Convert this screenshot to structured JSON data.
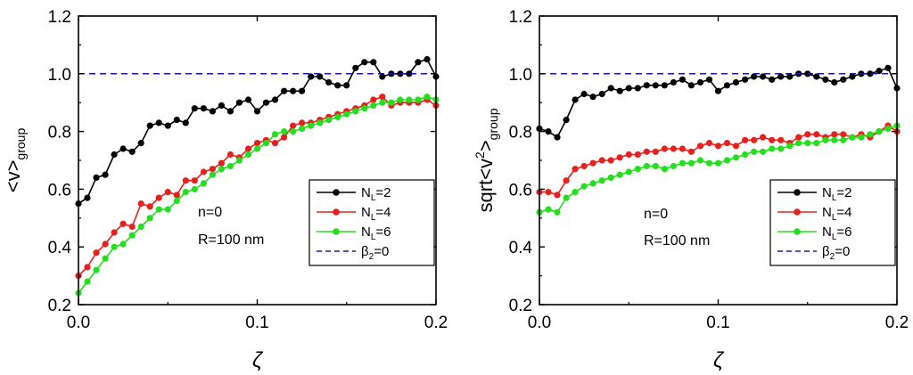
{
  "chart_data": [
    {
      "type": "line",
      "title": "",
      "xlabel": "ζ",
      "ylabel": "<v>",
      "ylabel_sub": "group",
      "xlim": [
        0.0,
        0.2
      ],
      "ylim": [
        0.2,
        1.2
      ],
      "xticks": [
        0.0,
        0.1,
        0.2
      ],
      "xtick_labels": [
        "0.0",
        "0.1",
        "0.2"
      ],
      "yticks": [
        0.2,
        0.4,
        0.6,
        0.8,
        1.0,
        1.2
      ],
      "ytick_labels": [
        "0.2",
        "0.4",
        "0.6",
        "0.8",
        "1.0",
        "1.2"
      ],
      "grid": false,
      "legend_position": "lower-right",
      "annotations": [
        "n=0",
        "R=100 nm"
      ],
      "series": [
        {
          "name": "NL=2",
          "label_main": "N",
          "label_sub": "L",
          "label_rest": "=2",
          "color": "#000000",
          "marker": true,
          "dashed": false,
          "x": [
            0,
            0.005,
            0.01,
            0.015,
            0.02,
            0.025,
            0.03,
            0.035,
            0.04,
            0.045,
            0.05,
            0.055,
            0.06,
            0.065,
            0.07,
            0.075,
            0.08,
            0.085,
            0.09,
            0.095,
            0.1,
            0.105,
            0.11,
            0.115,
            0.12,
            0.125,
            0.13,
            0.135,
            0.14,
            0.145,
            0.15,
            0.155,
            0.16,
            0.165,
            0.17,
            0.175,
            0.18,
            0.185,
            0.19,
            0.195,
            0.2
          ],
          "y": [
            0.55,
            0.57,
            0.64,
            0.65,
            0.72,
            0.74,
            0.73,
            0.76,
            0.82,
            0.83,
            0.82,
            0.84,
            0.83,
            0.88,
            0.88,
            0.87,
            0.89,
            0.87,
            0.9,
            0.91,
            0.87,
            0.9,
            0.91,
            0.94,
            0.94,
            0.94,
            0.99,
            0.99,
            0.97,
            0.96,
            0.96,
            1.02,
            1.04,
            1.04,
            0.99,
            1.0,
            1.0,
            1.0,
            1.04,
            1.05,
            0.99
          ]
        },
        {
          "name": "NL=4",
          "label_main": "N",
          "label_sub": "L",
          "label_rest": "=4",
          "color": "#e8201c",
          "marker": true,
          "dashed": false,
          "x": [
            0,
            0.005,
            0.01,
            0.015,
            0.02,
            0.025,
            0.03,
            0.035,
            0.04,
            0.045,
            0.05,
            0.055,
            0.06,
            0.065,
            0.07,
            0.075,
            0.08,
            0.085,
            0.09,
            0.095,
            0.1,
            0.105,
            0.11,
            0.115,
            0.12,
            0.125,
            0.13,
            0.135,
            0.14,
            0.145,
            0.15,
            0.155,
            0.16,
            0.165,
            0.17,
            0.175,
            0.18,
            0.185,
            0.19,
            0.195,
            0.2
          ],
          "y": [
            0.3,
            0.33,
            0.38,
            0.41,
            0.45,
            0.48,
            0.47,
            0.55,
            0.54,
            0.57,
            0.59,
            0.58,
            0.63,
            0.63,
            0.66,
            0.67,
            0.69,
            0.72,
            0.71,
            0.74,
            0.76,
            0.77,
            0.76,
            0.78,
            0.82,
            0.83,
            0.83,
            0.84,
            0.85,
            0.86,
            0.87,
            0.88,
            0.89,
            0.91,
            0.92,
            0.89,
            0.9,
            0.9,
            0.9,
            0.91,
            0.89
          ]
        },
        {
          "name": "NL=6",
          "label_main": "N",
          "label_sub": "L",
          "label_rest": "=6",
          "color": "#22e01c",
          "marker": true,
          "dashed": false,
          "x": [
            0,
            0.005,
            0.01,
            0.015,
            0.02,
            0.025,
            0.03,
            0.035,
            0.04,
            0.045,
            0.05,
            0.055,
            0.06,
            0.065,
            0.07,
            0.075,
            0.08,
            0.085,
            0.09,
            0.095,
            0.1,
            0.105,
            0.11,
            0.115,
            0.12,
            0.125,
            0.13,
            0.135,
            0.14,
            0.145,
            0.15,
            0.155,
            0.16,
            0.165,
            0.17,
            0.175,
            0.18,
            0.185,
            0.19,
            0.195,
            0.2
          ],
          "y": [
            0.24,
            0.28,
            0.32,
            0.36,
            0.4,
            0.41,
            0.44,
            0.47,
            0.5,
            0.53,
            0.53,
            0.56,
            0.59,
            0.6,
            0.62,
            0.65,
            0.67,
            0.68,
            0.7,
            0.72,
            0.74,
            0.76,
            0.79,
            0.8,
            0.8,
            0.81,
            0.82,
            0.83,
            0.84,
            0.85,
            0.86,
            0.87,
            0.88,
            0.89,
            0.9,
            0.9,
            0.91,
            0.91,
            0.91,
            0.92,
            0.91
          ]
        },
        {
          "name": "β2=0",
          "label_main": "β",
          "label_sub": "2",
          "label_rest": "=0",
          "color": "#1a1aa8",
          "marker": false,
          "dashed": true,
          "x": [
            0,
            0.2
          ],
          "y": [
            1.0,
            1.0
          ]
        }
      ]
    },
    {
      "type": "line",
      "title": "",
      "xlabel": "ζ",
      "ylabel": "sqrt<v²>",
      "ylabel_pre": "sqrt<v",
      "ylabel_sup": "2",
      "ylabel_post": ">",
      "ylabel_sub": "group",
      "xlim": [
        0.0,
        0.2
      ],
      "ylim": [
        0.2,
        1.2
      ],
      "xticks": [
        0.0,
        0.1,
        0.2
      ],
      "xtick_labels": [
        "0.0",
        "0.1",
        "0.2"
      ],
      "yticks": [
        0.2,
        0.4,
        0.6,
        0.8,
        1.0,
        1.2
      ],
      "ytick_labels": [
        "0.2",
        "0.4",
        "0.6",
        "0.8",
        "1.0",
        "1.2"
      ],
      "grid": false,
      "legend_position": "lower-right",
      "annotations": [
        "n=0",
        "R=100 nm"
      ],
      "series": [
        {
          "name": "NL=2",
          "label_main": "N",
          "label_sub": "L",
          "label_rest": "=2",
          "color": "#000000",
          "marker": true,
          "dashed": false,
          "x": [
            0,
            0.005,
            0.01,
            0.015,
            0.02,
            0.025,
            0.03,
            0.035,
            0.04,
            0.045,
            0.05,
            0.055,
            0.06,
            0.065,
            0.07,
            0.075,
            0.08,
            0.085,
            0.09,
            0.095,
            0.1,
            0.105,
            0.11,
            0.115,
            0.12,
            0.125,
            0.13,
            0.135,
            0.14,
            0.145,
            0.15,
            0.155,
            0.16,
            0.165,
            0.17,
            0.175,
            0.18,
            0.185,
            0.19,
            0.195,
            0.2
          ],
          "y": [
            0.81,
            0.8,
            0.78,
            0.84,
            0.91,
            0.93,
            0.92,
            0.93,
            0.95,
            0.94,
            0.95,
            0.95,
            0.96,
            0.96,
            0.96,
            0.97,
            0.98,
            0.96,
            0.97,
            0.98,
            0.94,
            0.96,
            0.97,
            0.98,
            0.99,
            0.99,
            0.98,
            0.99,
            0.99,
            1.0,
            1.0,
            0.99,
            0.98,
            0.97,
            0.98,
            0.99,
            1.0,
            1.0,
            1.01,
            1.02,
            0.95
          ]
        },
        {
          "name": "NL=4",
          "label_main": "N",
          "label_sub": "L",
          "label_rest": "=4",
          "color": "#e8201c",
          "marker": true,
          "dashed": false,
          "x": [
            0,
            0.005,
            0.01,
            0.015,
            0.02,
            0.025,
            0.03,
            0.035,
            0.04,
            0.045,
            0.05,
            0.055,
            0.06,
            0.065,
            0.07,
            0.075,
            0.08,
            0.085,
            0.09,
            0.095,
            0.1,
            0.105,
            0.11,
            0.115,
            0.12,
            0.125,
            0.13,
            0.135,
            0.14,
            0.145,
            0.15,
            0.155,
            0.16,
            0.165,
            0.17,
            0.175,
            0.18,
            0.185,
            0.19,
            0.195,
            0.2
          ],
          "y": [
            0.59,
            0.59,
            0.58,
            0.63,
            0.67,
            0.68,
            0.69,
            0.7,
            0.7,
            0.71,
            0.72,
            0.72,
            0.73,
            0.73,
            0.74,
            0.74,
            0.74,
            0.73,
            0.75,
            0.76,
            0.75,
            0.76,
            0.75,
            0.77,
            0.77,
            0.78,
            0.77,
            0.77,
            0.76,
            0.78,
            0.79,
            0.79,
            0.78,
            0.79,
            0.79,
            0.78,
            0.79,
            0.78,
            0.8,
            0.82,
            0.8
          ]
        },
        {
          "name": "NL=6",
          "label_main": "N",
          "label_sub": "L",
          "label_rest": "=6",
          "color": "#22e01c",
          "marker": true,
          "dashed": false,
          "x": [
            0,
            0.005,
            0.01,
            0.015,
            0.02,
            0.025,
            0.03,
            0.035,
            0.04,
            0.045,
            0.05,
            0.055,
            0.06,
            0.065,
            0.07,
            0.075,
            0.08,
            0.085,
            0.09,
            0.095,
            0.1,
            0.105,
            0.11,
            0.115,
            0.12,
            0.125,
            0.13,
            0.135,
            0.14,
            0.145,
            0.15,
            0.155,
            0.16,
            0.165,
            0.17,
            0.175,
            0.18,
            0.185,
            0.19,
            0.195,
            0.2
          ],
          "y": [
            0.52,
            0.53,
            0.52,
            0.57,
            0.59,
            0.61,
            0.62,
            0.63,
            0.64,
            0.65,
            0.66,
            0.67,
            0.68,
            0.68,
            0.67,
            0.68,
            0.69,
            0.69,
            0.7,
            0.69,
            0.69,
            0.7,
            0.71,
            0.72,
            0.73,
            0.73,
            0.74,
            0.74,
            0.75,
            0.76,
            0.76,
            0.76,
            0.77,
            0.77,
            0.77,
            0.78,
            0.78,
            0.79,
            0.8,
            0.81,
            0.82
          ]
        },
        {
          "name": "β2=0",
          "label_main": "β",
          "label_sub": "2",
          "label_rest": "=0",
          "color": "#1a1aa8",
          "marker": false,
          "dashed": true,
          "x": [
            0,
            0.2
          ],
          "y": [
            1.0,
            1.0
          ]
        }
      ]
    }
  ]
}
